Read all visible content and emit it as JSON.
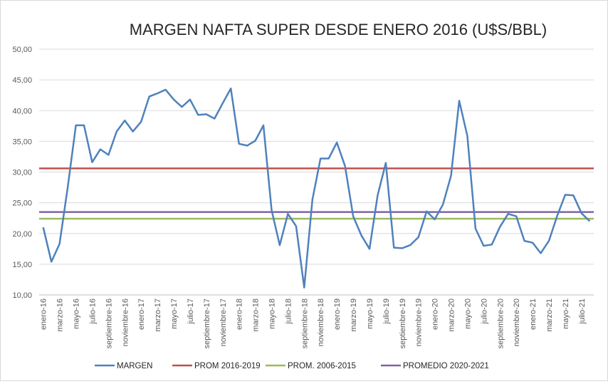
{
  "chart_data": {
    "type": "line",
    "title": "MARGEN NAFTA SUPER DESDE ENERO 2016 (U$S/BBL)",
    "xlabel": "",
    "ylabel": "",
    "ylim": [
      10,
      50
    ],
    "ytick_step": 5,
    "grid": true,
    "legend": "bottom",
    "x": [
      "enero-16",
      "febrero-16",
      "marzo-16",
      "abril-16",
      "mayo-16",
      "junio-16",
      "julio-16",
      "agosto-16",
      "septiembre-16",
      "octubre-16",
      "noviembre-16",
      "diciembre-16",
      "enero-17",
      "febrero-17",
      "marzo-17",
      "abril-17",
      "mayo-17",
      "junio-17",
      "julio-17",
      "agosto-17",
      "septiembre-17",
      "octubre-17",
      "noviembre-17",
      "diciembre-17",
      "enero-18",
      "febrero-18",
      "marzo-18",
      "abril-18",
      "mayo-18",
      "junio-18",
      "julio-18",
      "agosto-18",
      "septiembre-18",
      "octubre-18",
      "noviembre-18",
      "diciembre-18",
      "enero-19",
      "febrero-19",
      "marzo-19",
      "abril-19",
      "mayo-19",
      "junio-19",
      "julio-19",
      "agosto-19",
      "septiembre-19",
      "octubre-19",
      "noviembre-19",
      "diciembre-19",
      "enero-20",
      "febrero-20",
      "marzo-20",
      "abril-20",
      "mayo-20",
      "junio-20",
      "julio-20",
      "agosto-20",
      "septiembre-20",
      "octubre-20",
      "noviembre-20",
      "diciembre-20",
      "enero-21",
      "febrero-21",
      "marzo-21",
      "abril-21",
      "mayo-21",
      "junio-21",
      "julio-21",
      "agosto-21"
    ],
    "xtick_labels": [
      "enero-16",
      "marzo-16",
      "mayo-16",
      "julio-16",
      "septiembre-16",
      "noviembre-16",
      "enero-17",
      "marzo-17",
      "mayo-17",
      "julio-17",
      "septiembre-17",
      "noviembre-17",
      "enero-18",
      "marzo-18",
      "mayo-18",
      "julio-18",
      "septiembre-18",
      "noviembre-18",
      "enero-19",
      "marzo-19",
      "mayo-19",
      "julio-19",
      "septiembre-19",
      "noviembre-19",
      "enero-20",
      "marzo-20",
      "mayo-20",
      "julio-20",
      "septiembre-20",
      "noviembre-20",
      "enero-21",
      "marzo-21",
      "mayo-21",
      "julio-21"
    ],
    "series": [
      {
        "name": "MARGEN",
        "color": "#4f81bd",
        "type": "line",
        "values": [
          21.0,
          15.4,
          18.3,
          27.5,
          37.6,
          37.6,
          31.6,
          33.7,
          32.8,
          36.6,
          38.4,
          36.6,
          38.2,
          42.3,
          42.8,
          43.4,
          41.8,
          40.6,
          41.8,
          39.3,
          39.4,
          38.7,
          41.2,
          43.6,
          34.6,
          34.3,
          35.1,
          37.6,
          23.8,
          18.1,
          23.2,
          21.2,
          11.2,
          25.5,
          32.2,
          32.2,
          34.8,
          31.0,
          22.8,
          19.7,
          17.5,
          26.2,
          31.5,
          17.7,
          17.6,
          18.1,
          19.4,
          23.6,
          22.3,
          24.7,
          29.4,
          41.6,
          35.9,
          20.8,
          18.0,
          18.2,
          21.1,
          23.2,
          22.8,
          18.8,
          18.5,
          16.8,
          18.8,
          22.8,
          26.3,
          26.2,
          23.3,
          22.0
        ]
      },
      {
        "name": "PROM 2016-2019",
        "color": "#c0504d",
        "type": "hline",
        "value": 30.6
      },
      {
        "name": "PROM. 2006-2015",
        "color": "#9bbb59",
        "type": "hline",
        "value": 22.4
      },
      {
        "name": "PROMEDIO 2020-2021",
        "color": "#8064a2",
        "type": "hline",
        "value": 23.5
      }
    ]
  }
}
